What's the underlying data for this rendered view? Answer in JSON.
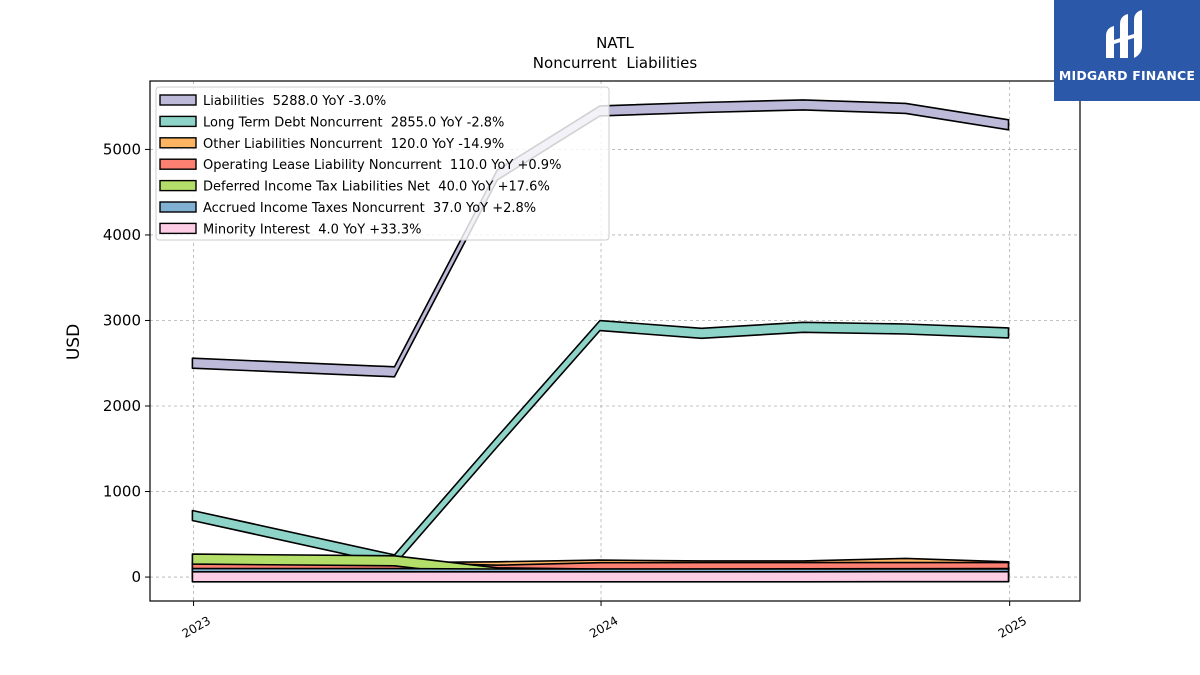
{
  "brand": {
    "name": "MIDGARD FINANCE",
    "bg_color": "#2b58a8"
  },
  "chart_data": {
    "type": "area",
    "title": "NATL",
    "subtitle": "Noncurrent  Liabilities",
    "ylabel": "USD",
    "xlabel": "",
    "ylim": [
      -280,
      5800
    ],
    "yticks": [
      0,
      1000,
      2000,
      3000,
      4000,
      5000
    ],
    "xlim": [
      "2022-11-23",
      "2025-03-05"
    ],
    "xticks": [
      "2023",
      "2024",
      "2025"
    ],
    "grid": true,
    "legend_position": "top-left",
    "x": [
      "2022-12-31",
      "2023-06-30",
      "2023-09-30",
      "2023-12-31",
      "2024-03-31",
      "2024-06-30",
      "2024-09-30",
      "2024-12-31"
    ],
    "series": [
      {
        "name": "Liabilities",
        "legend": "Liabilities  5288.0 YoY -3.0%",
        "color": "#bcb9d9",
        "values": [
          2500,
          2400,
          4700,
          5450,
          5490,
          5520,
          5480,
          5288
        ]
      },
      {
        "name": "Long Term Debt Noncurrent",
        "legend": "Long Term Debt Noncurrent  2855.0 YoY -2.8%",
        "color": "#8dd3c7",
        "values": [
          720,
          200,
          1580,
          2940,
          2850,
          2920,
          2900,
          2855
        ]
      },
      {
        "name": "Other Liabilities Noncurrent",
        "legend": "Other Liabilities Noncurrent  120.0 YoY -14.9%",
        "color": "#fdb462",
        "values": [
          110,
          110,
          120,
          140,
          130,
          130,
          160,
          120
        ]
      },
      {
        "name": "Operating Lease Liability Noncurrent",
        "legend": "Operating Lease Liability Noncurrent  110.0 YoY +0.9%",
        "color": "#fb8072",
        "values": [
          110,
          110,
          80,
          109,
          110,
          110,
          110,
          110
        ]
      },
      {
        "name": "Deferred Income Tax Liabilities Net",
        "legend": "Deferred Income Tax Liabilities Net  40.0 YoY +17.6%",
        "color": "#b3de69",
        "values": [
          210,
          190,
          50,
          34,
          36,
          38,
          39,
          40
        ]
      },
      {
        "name": "Accrued Income Taxes Noncurrent",
        "legend": "Accrued Income Taxes Noncurrent  37.0 YoY +2.8%",
        "color": "#80b1d3",
        "values": [
          40,
          40,
          36,
          36,
          36,
          36,
          37,
          37
        ]
      },
      {
        "name": "Minority Interest",
        "legend": "Minority Interest  4.0 YoY +33.3%",
        "color": "#fccde5",
        "values": [
          3,
          3,
          3,
          3,
          3,
          3,
          4,
          4
        ]
      }
    ]
  }
}
